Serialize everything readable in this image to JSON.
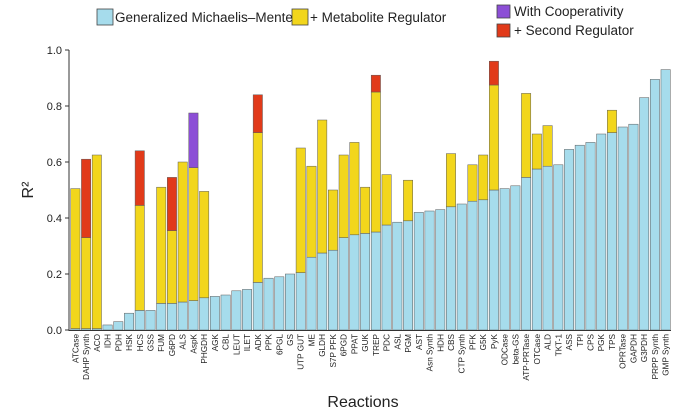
{
  "chart_data": {
    "type": "bar",
    "stacked": true,
    "xlabel": "Reactions",
    "ylabel": "R²",
    "ylim": [
      0,
      1.0
    ],
    "yticks": [
      "0.0",
      "0.2",
      "0.4",
      "0.6",
      "0.8",
      "1.0"
    ],
    "grid": false,
    "legend_position": "top",
    "categories": [
      "ATCase",
      "DAHP Synth",
      "ACO",
      "IDH",
      "PDH",
      "HSK",
      "HCS",
      "GSS",
      "FUM",
      "G6PD",
      "ALS",
      "AspK",
      "PHGDH",
      "AGK",
      "CBL",
      "LEUT",
      "ILET",
      "ADK",
      "PPK",
      "6PGL",
      "GS",
      "UTP GUT",
      "ME",
      "GLDH",
      "S7P PFK",
      "6PGD",
      "PPAT",
      "GUK",
      "TREP",
      "PDC",
      "ASL",
      "PGM",
      "AST",
      "Asn Synth",
      "HDH",
      "CBS",
      "CTP Synth",
      "PFK",
      "G5K",
      "PyK",
      "ODCase",
      "beta-GS",
      "ATP-PRTase",
      "OTCase",
      "ALD",
      "TKT-1",
      "ASS",
      "TPI",
      "CPS",
      "PGK",
      "TPS",
      "OPRTase",
      "GAPDH",
      "G3PDH",
      "PRPP Synth",
      "GMP Synth"
    ],
    "series": [
      {
        "name": "Generalized Michaelis–Menten",
        "color": "#a6dcec",
        "values": [
          0.005,
          0.005,
          0.005,
          0.018,
          0.03,
          0.06,
          0.07,
          0.07,
          0.095,
          0.095,
          0.1,
          0.105,
          0.115,
          0.12,
          0.125,
          0.14,
          0.145,
          0.17,
          0.185,
          0.19,
          0.2,
          0.205,
          0.26,
          0.275,
          0.285,
          0.33,
          0.34,
          0.345,
          0.35,
          0.375,
          0.385,
          0.39,
          0.42,
          0.425,
          0.43,
          0.44,
          0.45,
          0.46,
          0.465,
          0.5,
          0.505,
          0.515,
          0.545,
          0.575,
          0.585,
          0.59,
          0.645,
          0.66,
          0.67,
          0.7,
          0.705,
          0.725,
          0.735,
          0.83,
          0.895,
          0.93
        ]
      },
      {
        "name": "+ Metabolite Regulator",
        "color": "#f2d61c",
        "values": [
          0.5,
          0.325,
          0.62,
          0,
          0,
          0,
          0.375,
          0,
          0.415,
          0.26,
          0.5,
          0.475,
          0.38,
          0,
          0,
          0,
          0,
          0.535,
          0,
          0,
          0,
          0.445,
          0.325,
          0.475,
          0.215,
          0.295,
          0.33,
          0.165,
          0.5,
          0.18,
          0,
          0.145,
          0,
          0,
          0,
          0.19,
          0,
          0.13,
          0.16,
          0.375,
          0,
          0,
          0.3,
          0.125,
          0.145,
          0,
          0,
          0,
          0,
          0,
          0.08,
          0,
          0,
          0,
          0,
          0
        ]
      },
      {
        "name": "With Cooperativity",
        "color": "#8c4fd6",
        "values": [
          0,
          0,
          0,
          0,
          0,
          0,
          0,
          0,
          0,
          0,
          0,
          0.195,
          0,
          0,
          0,
          0,
          0,
          0,
          0,
          0,
          0,
          0,
          0,
          0,
          0,
          0,
          0,
          0,
          0,
          0,
          0,
          0,
          0,
          0,
          0,
          0,
          0,
          0,
          0,
          0,
          0,
          0,
          0,
          0,
          0,
          0,
          0,
          0,
          0,
          0,
          0,
          0,
          0,
          0,
          0,
          0
        ]
      },
      {
        "name": "+ Second Regulator",
        "color": "#e13a1a",
        "values": [
          0,
          0.28,
          0,
          0,
          0,
          0,
          0.195,
          0,
          0,
          0.19,
          0,
          0,
          0,
          0,
          0,
          0,
          0,
          0.135,
          0,
          0,
          0,
          0,
          0,
          0,
          0,
          0,
          0,
          0,
          0.06,
          0,
          0,
          0,
          0,
          0,
          0,
          0,
          0,
          0,
          0,
          0.085,
          0,
          0,
          0,
          0,
          0,
          0,
          0,
          0,
          0,
          0,
          0,
          0,
          0,
          0,
          0,
          0
        ]
      }
    ]
  }
}
